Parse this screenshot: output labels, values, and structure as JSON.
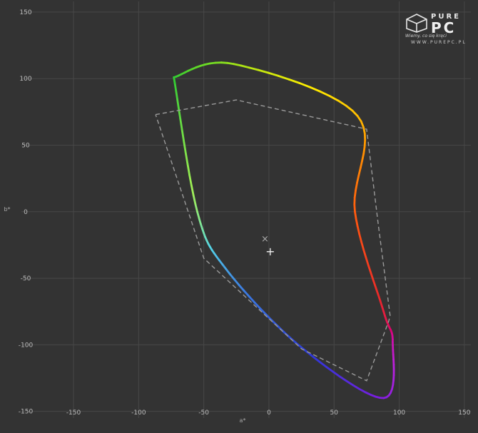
{
  "chart_data": {
    "type": "line",
    "title": "",
    "xlabel": "a*",
    "ylabel": "b*",
    "xlim": [
      -190,
      155
    ],
    "ylim": [
      -155,
      158
    ],
    "x_ticks": [
      -150,
      -100,
      -50,
      0,
      50,
      100,
      150
    ],
    "y_ticks": [
      -150,
      -100,
      -50,
      0,
      50,
      100,
      150
    ],
    "grid": true,
    "series": [
      {
        "style": "solid-spectrum",
        "colors": [
          "#33cc33",
          "#77dd22",
          "#ffee00",
          "#ff9900",
          "#ff5511",
          "#e8272c",
          "#dd0077",
          "#bb22dd",
          "#7a1ee0",
          "#2d39d8",
          "#3b78e0",
          "#55d6e8",
          "#a0ee55",
          "#33cc33"
        ],
        "points": [
          [
            -73,
            101
          ],
          [
            -27,
            111
          ],
          [
            68,
            72
          ],
          [
            66,
            0
          ],
          [
            88,
            -75
          ],
          [
            95,
            -98
          ],
          [
            88,
            -140
          ],
          [
            25,
            -102
          ],
          [
            -33,
            -43
          ],
          [
            -55,
            0
          ],
          [
            -73,
            101
          ]
        ]
      },
      {
        "style": "dashed-gray",
        "points": [
          [
            -87,
            73
          ],
          [
            -25,
            84
          ],
          [
            75,
            62
          ],
          [
            84,
            -10
          ],
          [
            93,
            -78
          ],
          [
            92,
            -82
          ],
          [
            75,
            -127
          ],
          [
            25,
            -103
          ],
          [
            -50,
            -35
          ],
          [
            -87,
            73
          ]
        ]
      }
    ],
    "markers": [
      {
        "symbol": "×",
        "x": -3,
        "y": -20
      },
      {
        "symbol": "+",
        "x": 1,
        "y": -30
      }
    ]
  },
  "watermark": {
    "brand_top": "PURE",
    "brand_bottom": "PC",
    "tagline": "Wiemy, co się kręci",
    "url": "WWW.PUREPC.PL"
  }
}
